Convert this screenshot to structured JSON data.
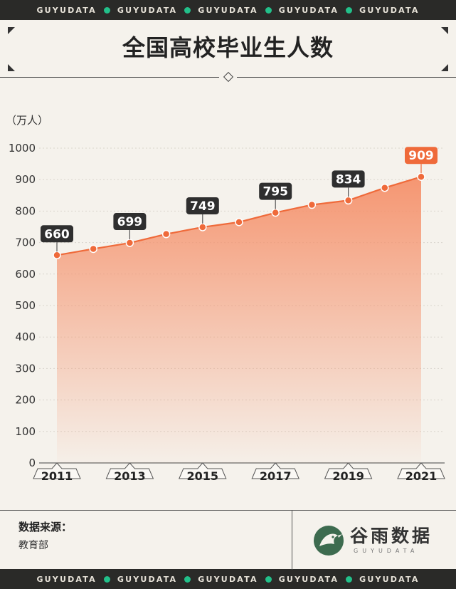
{
  "brand": {
    "repeat_text": "GUYUDATA",
    "repeat_items": [
      "GUYUDATA",
      "GUYUDATA",
      "GUYUDATA",
      "GUYUDATA",
      "GUYUDATA"
    ],
    "dot_color": "#22c08a"
  },
  "header": {
    "title": "全国高校毕业生人数"
  },
  "chart_data": {
    "type": "area",
    "title": "全国高校毕业生人数",
    "ylabel": "（万人）",
    "xlabel": "",
    "x": [
      2011,
      2012,
      2013,
      2014,
      2015,
      2016,
      2017,
      2018,
      2019,
      2020,
      2021
    ],
    "values": [
      660,
      680,
      699,
      727,
      749,
      765,
      795,
      820,
      834,
      874,
      909
    ],
    "ylim": [
      0,
      1000
    ],
    "yticks": [
      0,
      100,
      200,
      300,
      400,
      500,
      600,
      700,
      800,
      900,
      1000
    ],
    "xtick_labels": [
      "2011",
      "2013",
      "2015",
      "2017",
      "2019",
      "2021"
    ],
    "labeled_points": [
      {
        "x": 2011,
        "label": "660"
      },
      {
        "x": 2013,
        "label": "699"
      },
      {
        "x": 2015,
        "label": "749"
      },
      {
        "x": 2017,
        "label": "795"
      },
      {
        "x": 2019,
        "label": "834"
      },
      {
        "x": 2021,
        "label": "909",
        "highlight": true
      }
    ],
    "grid": true,
    "colors": {
      "line": "#ef6a3a",
      "area_top": "#f5916b",
      "label_bg": "#2f2f2f",
      "highlight_bg": "#ef6a3a"
    }
  },
  "footer": {
    "source_label": "数据来源：",
    "source_value": "教育部",
    "logo_text": "谷雨数据",
    "logo_sub": "GUYUDATA",
    "logo_icon": "bird-icon"
  }
}
